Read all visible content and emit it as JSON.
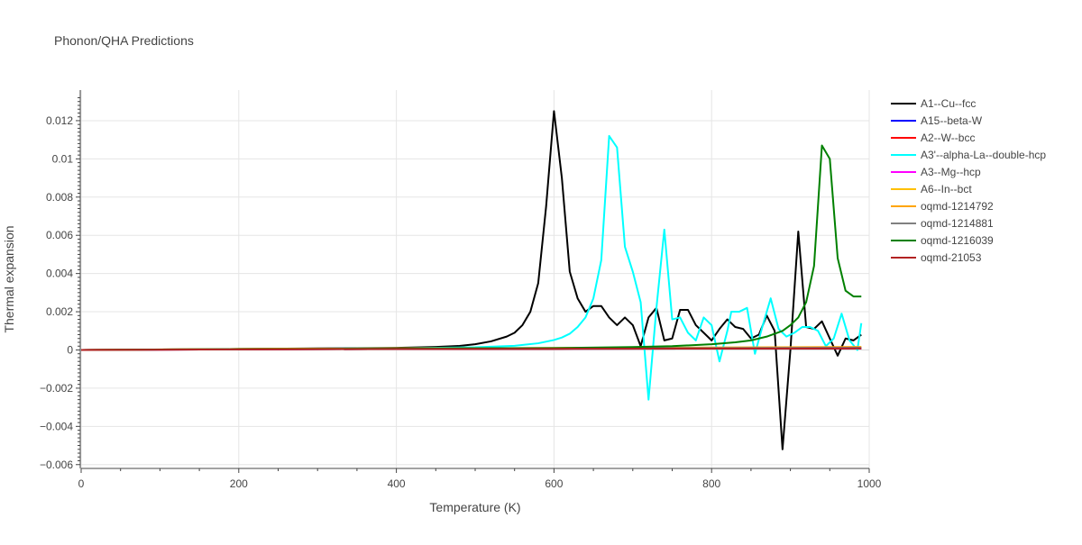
{
  "chart_data": {
    "type": "line",
    "title": "Phonon/QHA Predictions",
    "xlabel": "Temperature (K)",
    "ylabel": "Thermal expansion",
    "xlim": [
      0,
      1000
    ],
    "ylim": [
      -0.0062,
      0.0136
    ],
    "grid": true,
    "legend_position": "right",
    "x_ticks": [
      0,
      200,
      400,
      600,
      800,
      1000
    ],
    "x_tick_labels": [
      "0",
      "200",
      "400",
      "600",
      "800",
      "1000"
    ],
    "y_ticks": [
      -0.006,
      -0.004,
      -0.002,
      0,
      0.002,
      0.004,
      0.006,
      0.008,
      0.01,
      0.012
    ],
    "y_tick_labels": [
      "−0.006",
      "−0.004",
      "−0.002",
      "0",
      "0.002",
      "0.004",
      "0.006",
      "0.008",
      "0.01",
      "0.012"
    ],
    "series": [
      {
        "name": "A1--Cu--fcc",
        "color": "#000000",
        "points": [
          [
            0,
            0
          ],
          [
            100,
            2e-05
          ],
          [
            200,
            5e-05
          ],
          [
            300,
            8e-05
          ],
          [
            400,
            0.00011
          ],
          [
            450,
            0.00016
          ],
          [
            480,
            0.00021
          ],
          [
            500,
            0.0003
          ],
          [
            520,
            0.00045
          ],
          [
            540,
            0.0007
          ],
          [
            550,
            0.0009
          ],
          [
            560,
            0.0013
          ],
          [
            570,
            0.002
          ],
          [
            580,
            0.0035
          ],
          [
            590,
            0.0075
          ],
          [
            600,
            0.0125
          ],
          [
            610,
            0.009
          ],
          [
            620,
            0.0041
          ],
          [
            630,
            0.0027
          ],
          [
            640,
            0.002
          ],
          [
            650,
            0.0023
          ],
          [
            660,
            0.0023
          ],
          [
            670,
            0.0017
          ],
          [
            680,
            0.0013
          ],
          [
            690,
            0.0017
          ],
          [
            700,
            0.0013
          ],
          [
            710,
            0.0002
          ],
          [
            720,
            0.0017
          ],
          [
            730,
            0.0022
          ],
          [
            740,
            0.0005
          ],
          [
            750,
            0.0006
          ],
          [
            760,
            0.0021
          ],
          [
            770,
            0.0021
          ],
          [
            780,
            0.0013
          ],
          [
            790,
            0.0009
          ],
          [
            800,
            0.0005
          ],
          [
            810,
            0.0011
          ],
          [
            820,
            0.0016
          ],
          [
            830,
            0.0012
          ],
          [
            840,
            0.0011
          ],
          [
            850,
            0.0006
          ],
          [
            860,
            0.0008
          ],
          [
            870,
            0.0018
          ],
          [
            880,
            0.001
          ],
          [
            890,
            -0.0052
          ],
          [
            900,
            0.0
          ],
          [
            910,
            0.0062
          ],
          [
            920,
            0.0012
          ],
          [
            930,
            0.0011
          ],
          [
            940,
            0.0015
          ],
          [
            950,
            0.0006
          ],
          [
            960,
            -0.0003
          ],
          [
            970,
            0.0006
          ],
          [
            980,
            0.0005
          ],
          [
            990,
            0.0008
          ]
        ]
      },
      {
        "name": "A15--beta-W",
        "color": "#0000ff",
        "points": [
          [
            0,
            0
          ],
          [
            200,
            3e-05
          ],
          [
            400,
            5e-05
          ],
          [
            600,
            6e-05
          ],
          [
            800,
            7e-05
          ],
          [
            990,
            8e-05
          ]
        ]
      },
      {
        "name": "A2--W--bcc",
        "color": "#ff0000",
        "points": [
          [
            0,
            0
          ],
          [
            200,
            3e-05
          ],
          [
            400,
            5e-05
          ],
          [
            600,
            6e-05
          ],
          [
            800,
            7e-05
          ],
          [
            990,
            8e-05
          ]
        ]
      },
      {
        "name": "A3'--alpha-La--double-hcp",
        "color": "#00ffff",
        "points": [
          [
            0,
            0
          ],
          [
            200,
            4e-05
          ],
          [
            400,
            9e-05
          ],
          [
            500,
            0.00014
          ],
          [
            550,
            0.00022
          ],
          [
            580,
            0.00035
          ],
          [
            600,
            0.00052
          ],
          [
            610,
            0.00065
          ],
          [
            620,
            0.00085
          ],
          [
            630,
            0.0012
          ],
          [
            640,
            0.0017
          ],
          [
            650,
            0.0027
          ],
          [
            660,
            0.0047
          ],
          [
            670,
            0.0112
          ],
          [
            680,
            0.0106
          ],
          [
            690,
            0.0054
          ],
          [
            700,
            0.0041
          ],
          [
            710,
            0.0025
          ],
          [
            720,
            -0.0026
          ],
          [
            730,
            0.0022
          ],
          [
            740,
            0.0063
          ],
          [
            750,
            0.0016
          ],
          [
            760,
            0.0017
          ],
          [
            770,
            0.0009
          ],
          [
            780,
            0.0005
          ],
          [
            790,
            0.0017
          ],
          [
            800,
            0.0013
          ],
          [
            810,
            -0.0006
          ],
          [
            820,
            0.001
          ],
          [
            825,
            0.002
          ],
          [
            835,
            0.002
          ],
          [
            845,
            0.0022
          ],
          [
            855,
            -0.0002
          ],
          [
            865,
            0.0013
          ],
          [
            875,
            0.0027
          ],
          [
            885,
            0.0011
          ],
          [
            895,
            0.0007
          ],
          [
            905,
            0.0009
          ],
          [
            915,
            0.0012
          ],
          [
            925,
            0.0012
          ],
          [
            935,
            0.001
          ],
          [
            945,
            0.0002
          ],
          [
            955,
            0.0006
          ],
          [
            965,
            0.0019
          ],
          [
            975,
            0.0005
          ],
          [
            985,
            0.0
          ],
          [
            990,
            0.0014
          ]
        ]
      },
      {
        "name": "A3--Mg--hcp",
        "color": "#ff00ff",
        "points": [
          [
            0,
            0
          ],
          [
            200,
            4e-05
          ],
          [
            400,
            6e-05
          ],
          [
            600,
            7e-05
          ],
          [
            800,
            8e-05
          ],
          [
            990,
            9e-05
          ]
        ]
      },
      {
        "name": "A6--In--bct",
        "color": "#ffc000",
        "points": [
          [
            0,
            0
          ],
          [
            200,
            5e-05
          ],
          [
            400,
            8e-05
          ],
          [
            600,
            0.0001
          ],
          [
            800,
            0.00012
          ],
          [
            990,
            0.00014
          ]
        ]
      },
      {
        "name": "oqmd-1214792",
        "color": "#ffa500",
        "points": [
          [
            0,
            0
          ],
          [
            200,
            5e-05
          ],
          [
            400,
            8e-05
          ],
          [
            600,
            0.0001
          ],
          [
            800,
            0.00013
          ],
          [
            990,
            0.00016
          ]
        ]
      },
      {
        "name": "oqmd-1214881",
        "color": "#808080",
        "points": [
          [
            0,
            0
          ],
          [
            200,
            4e-05
          ],
          [
            400,
            6e-05
          ],
          [
            600,
            8e-05
          ],
          [
            800,
            0.0001
          ],
          [
            990,
            0.00012
          ]
        ]
      },
      {
        "name": "oqmd-1216039",
        "color": "#008000",
        "points": [
          [
            0,
            0
          ],
          [
            200,
            4e-05
          ],
          [
            400,
            7e-05
          ],
          [
            500,
            9e-05
          ],
          [
            600,
            0.0001
          ],
          [
            700,
            0.00015
          ],
          [
            750,
            0.0002
          ],
          [
            800,
            0.0003
          ],
          [
            830,
            0.0004
          ],
          [
            850,
            0.0005
          ],
          [
            870,
            0.0007
          ],
          [
            890,
            0.001
          ],
          [
            900,
            0.0013
          ],
          [
            910,
            0.0017
          ],
          [
            920,
            0.0025
          ],
          [
            930,
            0.0044
          ],
          [
            940,
            0.0107
          ],
          [
            950,
            0.01
          ],
          [
            960,
            0.0048
          ],
          [
            970,
            0.0031
          ],
          [
            980,
            0.0028
          ],
          [
            990,
            0.0028
          ]
        ]
      },
      {
        "name": "oqmd-21053",
        "color": "#b22222",
        "points": [
          [
            0,
            0
          ],
          [
            200,
            3e-05
          ],
          [
            400,
            5e-05
          ],
          [
            600,
            6e-05
          ],
          [
            800,
            7e-05
          ],
          [
            990,
            8e-05
          ]
        ]
      }
    ]
  }
}
